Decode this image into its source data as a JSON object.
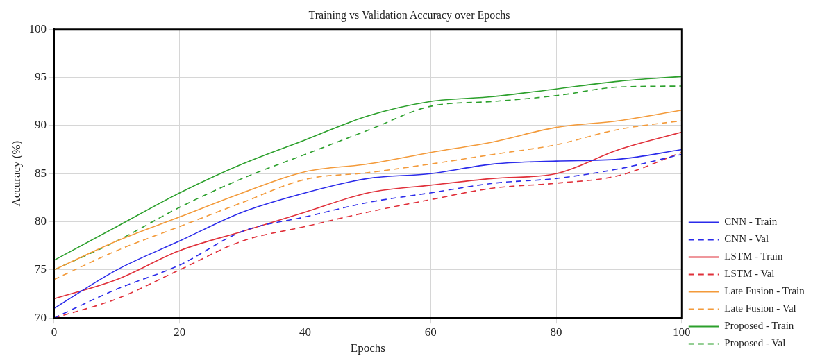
{
  "chart_data": {
    "type": "line",
    "title": "Training vs Validation Accuracy over Epochs",
    "xlabel": "Epochs",
    "ylabel": "Accuracy (%)",
    "x": [
      0,
      10,
      20,
      30,
      40,
      50,
      60,
      70,
      80,
      90,
      100
    ],
    "xlim": [
      0,
      100
    ],
    "xticks": [
      0,
      20,
      40,
      60,
      80,
      100
    ],
    "ylim": [
      70,
      100
    ],
    "yticks": [
      70,
      75,
      80,
      85,
      90,
      95,
      100
    ],
    "grid": true,
    "legend": "bottom right",
    "marker": "none",
    "series": [
      {
        "name": "CNN - Train",
        "color": "#2b2bea",
        "line_style": "solid",
        "values": [
          71,
          75,
          78,
          81,
          83,
          84.5,
          85,
          86,
          86.3,
          86.5,
          87.5
        ]
      },
      {
        "name": "CNN - Val",
        "color": "#2b2bea",
        "line_style": "dashed",
        "values": [
          70,
          73,
          75.5,
          79,
          80.5,
          82,
          83,
          84,
          84.5,
          85.5,
          87
        ]
      },
      {
        "name": "LSTM - Train",
        "color": "#e0303a",
        "line_style": "solid",
        "values": [
          72,
          74,
          77,
          79,
          81,
          83,
          83.8,
          84.5,
          85,
          87.5,
          89.3
        ]
      },
      {
        "name": "LSTM - Val",
        "color": "#e0303a",
        "line_style": "dashed",
        "values": [
          70,
          72,
          75,
          78,
          79.5,
          81,
          82.3,
          83.5,
          84,
          84.8,
          87.2
        ]
      },
      {
        "name": "Late Fusion - Train",
        "color": "#f39a3a",
        "line_style": "solid",
        "values": [
          75,
          78,
          80.5,
          83,
          85.2,
          86,
          87.2,
          88.3,
          89.8,
          90.5,
          91.6
        ]
      },
      {
        "name": "Late Fusion - Val",
        "color": "#f39a3a",
        "line_style": "dashed",
        "values": [
          74,
          77,
          79.5,
          82,
          84.4,
          85.1,
          86,
          87,
          88,
          89.6,
          90.5
        ]
      },
      {
        "name": "Proposed - Train",
        "color": "#2ca02c",
        "line_style": "solid",
        "values": [
          76,
          79.5,
          83,
          86,
          88.5,
          91,
          92.5,
          93,
          93.8,
          94.6,
          95.1
        ]
      },
      {
        "name": "Proposed - Val",
        "color": "#2ca02c",
        "line_style": "dashed",
        "values": [
          75,
          78,
          81.5,
          84.5,
          87,
          89.5,
          92,
          92.5,
          93.1,
          94,
          94.1
        ]
      }
    ]
  }
}
